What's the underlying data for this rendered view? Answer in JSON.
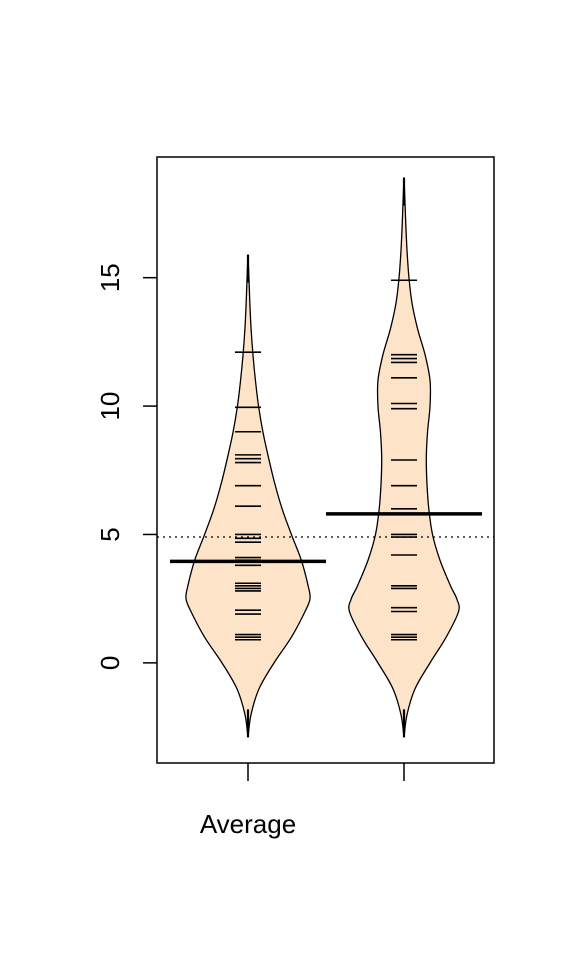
{
  "chart_data": {
    "type": "beanplot",
    "title": "",
    "xlabel": "",
    "ylabel": "",
    "ylim": [
      -3.9,
      19.7
    ],
    "yticks": [
      0,
      5,
      10,
      15
    ],
    "ytick_labels": [
      "0",
      "5",
      "10",
      "15"
    ],
    "categories": [
      "Average",
      ""
    ],
    "overall_mean": 4.9,
    "fill_color": "#FDE3C8",
    "line_color": "#000000",
    "beans": [
      {
        "category": "Average",
        "mean": 3.95,
        "points": [
          0.9,
          1.0,
          1.1,
          1.9,
          2.05,
          2.8,
          2.9,
          3.0,
          3.1,
          3.8,
          4.0,
          4.1,
          4.7,
          4.85,
          5.0,
          6.1,
          6.9,
          7.8,
          7.95,
          8.1,
          9.0,
          9.95,
          12.1
        ],
        "density": [
          [
            -2.9,
            0.0
          ],
          [
            -2.0,
            0.05
          ],
          [
            -1.0,
            0.18
          ],
          [
            0.0,
            0.42
          ],
          [
            1.0,
            0.7
          ],
          [
            2.0,
            0.92
          ],
          [
            2.5,
            1.0
          ],
          [
            3.0,
            0.97
          ],
          [
            4.0,
            0.86
          ],
          [
            5.0,
            0.7
          ],
          [
            6.0,
            0.55
          ],
          [
            7.0,
            0.43
          ],
          [
            8.0,
            0.33
          ],
          [
            9.0,
            0.24
          ],
          [
            10.0,
            0.17
          ],
          [
            11.0,
            0.12
          ],
          [
            12.0,
            0.08
          ],
          [
            13.0,
            0.05
          ],
          [
            14.0,
            0.03
          ],
          [
            15.0,
            0.015
          ],
          [
            15.9,
            0.0
          ]
        ]
      },
      {
        "category": "",
        "mean": 5.8,
        "points": [
          0.9,
          1.0,
          1.1,
          2.0,
          2.15,
          2.9,
          3.0,
          4.2,
          4.9,
          5.0,
          5.8,
          6.0,
          6.9,
          7.9,
          9.9,
          10.1,
          11.1,
          11.7,
          11.85,
          12.0,
          14.9
        ],
        "density": [
          [
            -2.9,
            0.0
          ],
          [
            -2.0,
            0.05
          ],
          [
            -1.0,
            0.18
          ],
          [
            0.0,
            0.42
          ],
          [
            1.0,
            0.68
          ],
          [
            2.0,
            0.88
          ],
          [
            2.5,
            0.85
          ],
          [
            3.0,
            0.75
          ],
          [
            4.0,
            0.58
          ],
          [
            5.0,
            0.46
          ],
          [
            6.0,
            0.4
          ],
          [
            7.0,
            0.37
          ],
          [
            8.0,
            0.36
          ],
          [
            9.0,
            0.38
          ],
          [
            10.0,
            0.42
          ],
          [
            11.0,
            0.42
          ],
          [
            12.0,
            0.34
          ],
          [
            13.0,
            0.22
          ],
          [
            14.0,
            0.13
          ],
          [
            15.0,
            0.08
          ],
          [
            16.0,
            0.05
          ],
          [
            17.0,
            0.03
          ],
          [
            18.0,
            0.015
          ],
          [
            18.9,
            0.0
          ]
        ]
      }
    ],
    "grid": false,
    "legend": "none"
  }
}
